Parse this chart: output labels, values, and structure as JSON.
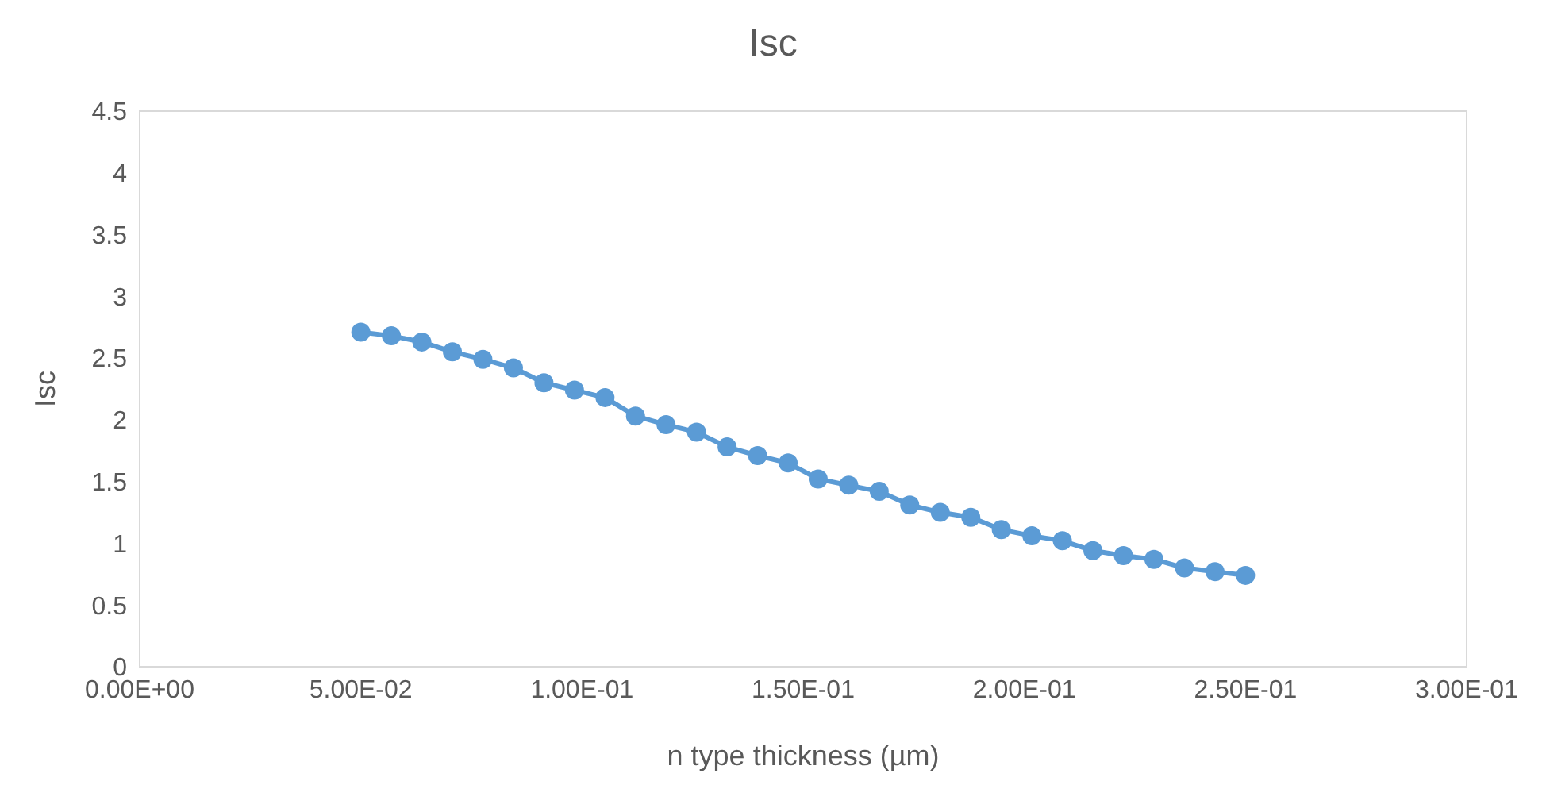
{
  "chart_data": {
    "type": "line",
    "title": "Isc",
    "xlabel": "n type thickness (µm)",
    "ylabel": "Isc",
    "x": [
      0.05,
      0.0569,
      0.0638,
      0.0707,
      0.0776,
      0.0845,
      0.0914,
      0.0983,
      0.1052,
      0.1121,
      0.119,
      0.1259,
      0.1328,
      0.1397,
      0.1466,
      0.1534,
      0.1603,
      0.1672,
      0.1741,
      0.181,
      0.1879,
      0.1948,
      0.2017,
      0.2086,
      0.2155,
      0.2224,
      0.2293,
      0.2362,
      0.2431,
      0.25
    ],
    "series": [
      {
        "color": "#5b9bd5",
        "values": [
          2.71,
          2.68,
          2.63,
          2.55,
          2.49,
          2.42,
          2.3,
          2.24,
          2.18,
          2.03,
          1.96,
          1.9,
          1.78,
          1.71,
          1.65,
          1.52,
          1.47,
          1.42,
          1.31,
          1.25,
          1.21,
          1.11,
          1.06,
          1.02,
          0.94,
          0.9,
          0.87,
          0.8,
          0.77,
          0.74
        ]
      }
    ],
    "xlim": [
      0,
      0.3
    ],
    "xticks": [
      {
        "value": 0,
        "label": "0.00E+00"
      },
      {
        "value": 0.05,
        "label": "5.00E-02"
      },
      {
        "value": 0.1,
        "label": "1.00E-01"
      },
      {
        "value": 0.15,
        "label": "1.50E-01"
      },
      {
        "value": 0.2,
        "label": "2.00E-01"
      },
      {
        "value": 0.25,
        "label": "2.50E-01"
      },
      {
        "value": 0.3,
        "label": "3.00E-01"
      }
    ],
    "ylim": [
      0,
      4.5
    ],
    "yticks": [
      0,
      0.5,
      1,
      1.5,
      2,
      2.5,
      3,
      3.5,
      4,
      4.5
    ],
    "grid": false,
    "legend": false,
    "marker": "circle",
    "line_style": "solid"
  }
}
